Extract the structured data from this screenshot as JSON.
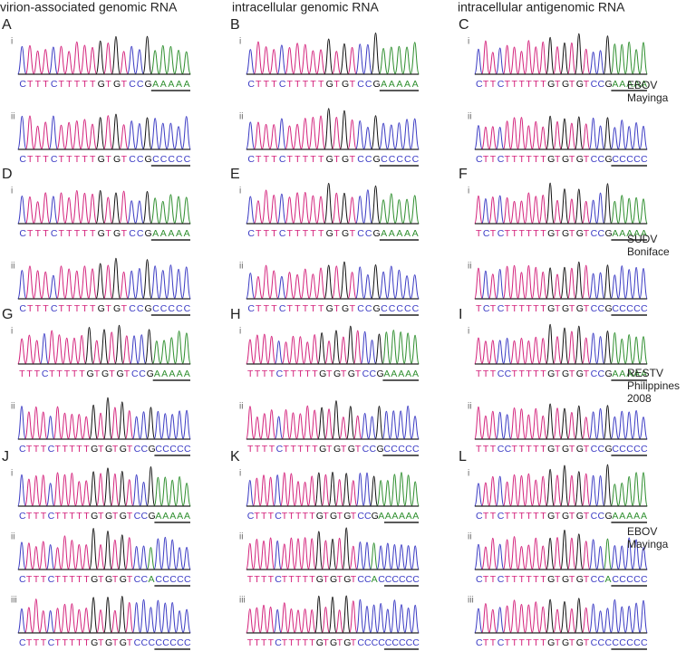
{
  "columns": [
    "virion-associated genomic RNA",
    "intracellular genomic RNA",
    "intracellular antigenomic RNA"
  ],
  "panels": [
    {
      "letter": "A",
      "rows": [
        {
          "label": "i",
          "sequence": "CTTTCTTTTTGTGTCCGAAAAA"
        },
        {
          "label": "ii",
          "sequence": "CTTTCTTTTTGTGTCCGCCCCC"
        }
      ]
    },
    {
      "letter": "B",
      "rows": [
        {
          "label": "i",
          "sequence": "CTTTCTTTTTGTGTCCGAAAAA"
        },
        {
          "label": "ii",
          "sequence": "CTTTCTTTTTGTGTCCGCCCCC"
        }
      ]
    },
    {
      "letter": "C",
      "rows": [
        {
          "label": "i",
          "sequence": "CTTCTTTTTTGTGTGTCCGAAAAA"
        },
        {
          "label": "ii",
          "sequence": "CTTCTTTTTTGTGTGTCCGCCCCC"
        }
      ]
    },
    {
      "letter": "D",
      "rows": [
        {
          "label": "i",
          "sequence": "CTTTCTTTTTGTGTCCGAAAAA"
        },
        {
          "label": "ii",
          "sequence": "CTTTCTTTTTGTGTCCGCCCCC"
        }
      ]
    },
    {
      "letter": "E",
      "rows": [
        {
          "label": "i",
          "sequence": "CTTTCTTTTTGTGTCCGAAAAA"
        },
        {
          "label": "ii",
          "sequence": "CTTTCTTTTTGTGTCCGCCCCC"
        }
      ]
    },
    {
      "letter": "F",
      "rows": [
        {
          "label": "i",
          "sequence": "TCTCTTTTTTGTGTGTCCGAAAAA"
        },
        {
          "label": "ii",
          "sequence": "TCTCTTTTTTGTGTGTCCGCCCCC"
        }
      ]
    },
    {
      "letter": "G",
      "rows": [
        {
          "label": "i",
          "sequence": "TTTCTTTTTGTGTGTCCGAAAAA"
        },
        {
          "label": "ii",
          "sequence": "CTTTCTTTTTGTGTGTCCGCCCCC"
        }
      ]
    },
    {
      "letter": "H",
      "rows": [
        {
          "label": "i",
          "sequence": "TTTTCTTTTTGTGTGTCCGAAAAA"
        },
        {
          "label": "ii",
          "sequence": "TTTTCTTTTTGTGTGTCCGCCCCC"
        }
      ]
    },
    {
      "letter": "I",
      "rows": [
        {
          "label": "i",
          "sequence": "TTTCCTTTTTGTGTGTCCGAAAAA"
        },
        {
          "label": "ii",
          "sequence": "TTTCCTTTTTGTGTGTCCGCCCCC"
        }
      ]
    },
    {
      "letter": "J",
      "rows": [
        {
          "label": "i",
          "sequence": "CTTTCTTTTTGTGTGTCCGAAAAA"
        },
        {
          "label": "ii",
          "sequence": "CTTTCTTTTTGTGTGTCCACCCCC"
        },
        {
          "label": "iii",
          "sequence": "CTTTCTTTTTGTGTGTCCCCCCCC"
        }
      ]
    },
    {
      "letter": "K",
      "rows": [
        {
          "label": "i",
          "sequence": "CTTTCTTTTTGTGTGTCCGAAAAAA"
        },
        {
          "label": "ii",
          "sequence": "TTTTCTTTTTGTGTGTCCACCCCCC"
        },
        {
          "label": "iii",
          "sequence": "TTTTCTTTTTGTGTGTCCCCCCCCC"
        }
      ]
    },
    {
      "letter": "L",
      "rows": [
        {
          "label": "i",
          "sequence": "CTTCTTTTTTGTGTGTCCGAAAAA"
        },
        {
          "label": "ii",
          "sequence": "CTTCTTTTTTGTGTGTCCACCCCC"
        },
        {
          "label": "iii",
          "sequence": "CTTCTTTTTTGTGTGTCCCCCCCC"
        }
      ]
    }
  ],
  "strains": [
    {
      "lines": [
        "EBOV",
        "Mayinga"
      ]
    },
    {
      "lines": [
        "SUDV",
        "Boniface"
      ]
    },
    {
      "lines": [
        "RESTV",
        "Philippines",
        "2008"
      ]
    },
    {
      "lines": [
        "EBOV",
        "Mayinga"
      ]
    }
  ]
}
